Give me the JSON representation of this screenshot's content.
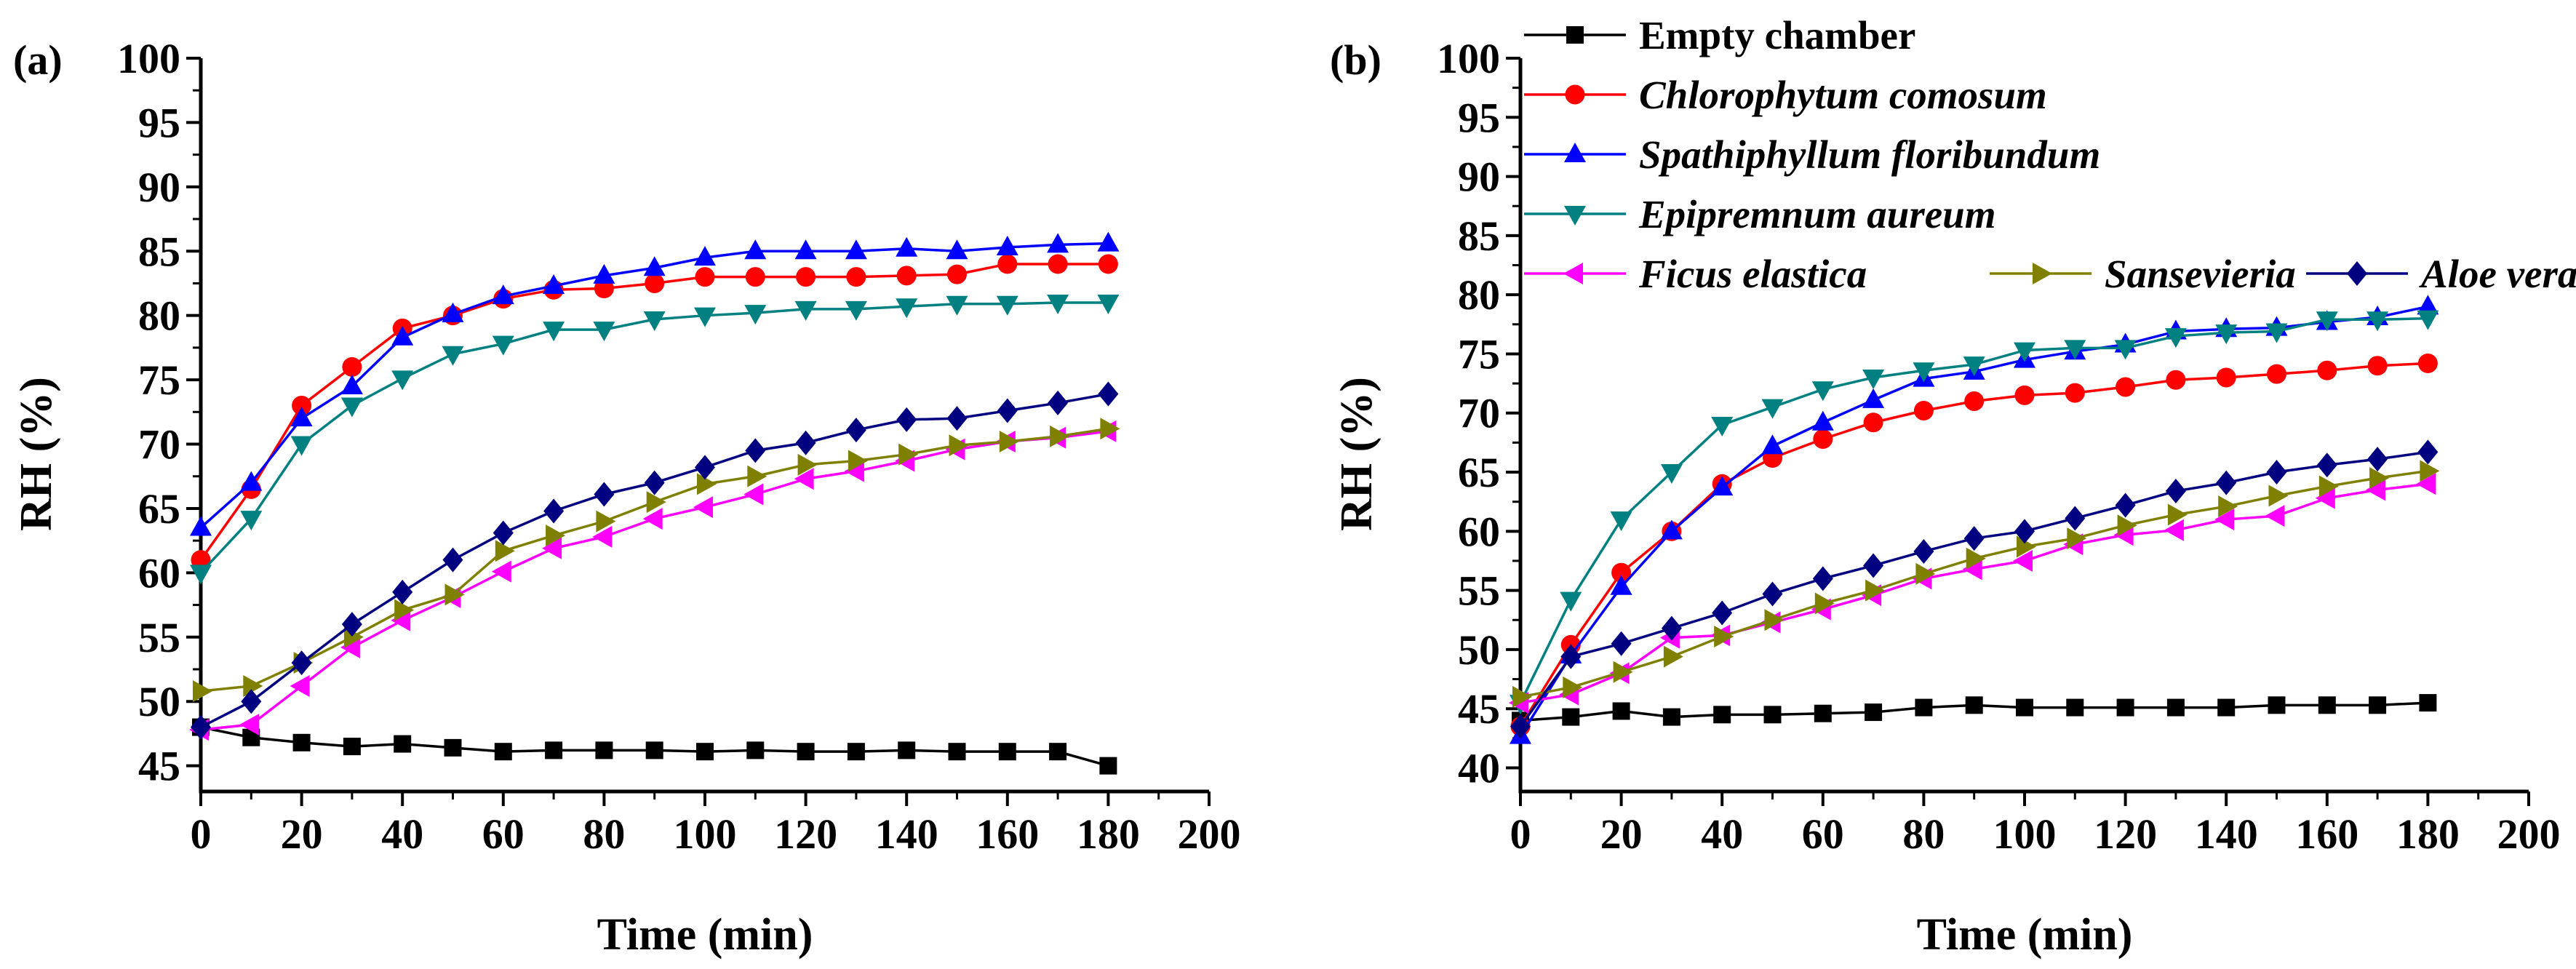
{
  "chart_data": [
    {
      "panel_label": "(a)",
      "type": "line",
      "xlabel": "Time (min)",
      "ylabel": "RH (%)",
      "xlim": [
        0,
        200
      ],
      "ylim": [
        43,
        100
      ],
      "x_ticks": [
        "0",
        "20",
        "40",
        "60",
        "80",
        "100",
        "120",
        "140",
        "160",
        "180",
        "200"
      ],
      "y_ticks": [
        "45",
        "50",
        "55",
        "60",
        "65",
        "70",
        "75",
        "80",
        "85",
        "90",
        "95",
        "100"
      ],
      "x": [
        0,
        10,
        20,
        30,
        40,
        50,
        60,
        70,
        80,
        90,
        100,
        110,
        120,
        130,
        140,
        150,
        160,
        170,
        180
      ],
      "series": [
        {
          "name": "Empty chamber",
          "color": "#000000",
          "marker": "square",
          "values": [
            48,
            47.2,
            46.8,
            46.5,
            46.7,
            46.4,
            46.1,
            46.2,
            46.2,
            46.2,
            46.1,
            46.2,
            46.1,
            46.1,
            46.2,
            46.1,
            46.1,
            46.1,
            45.0
          ]
        },
        {
          "name": "Chlorophytum comosum",
          "color": "#ff0000",
          "marker": "circle",
          "values": [
            61,
            66.5,
            73,
            76,
            79,
            80,
            81.3,
            82,
            82.1,
            82.5,
            83,
            83,
            83,
            83,
            83.1,
            83.2,
            84,
            84,
            84
          ]
        },
        {
          "name": "Spathiphyllum floribundum",
          "color": "#0000ff",
          "marker": "triangle-up",
          "values": [
            63.5,
            67,
            72,
            74.5,
            78.3,
            80.1,
            81.5,
            82.3,
            83.1,
            83.7,
            84.5,
            85,
            85,
            85,
            85.2,
            85,
            85.3,
            85.5,
            85.6
          ]
        },
        {
          "name": "Epipremnum aureum",
          "color": "#008080",
          "marker": "triangle-down",
          "values": [
            60,
            64.2,
            70,
            73,
            75.1,
            77,
            77.8,
            78.9,
            78.9,
            79.7,
            80,
            80.2,
            80.5,
            80.5,
            80.7,
            80.9,
            80.9,
            81,
            81
          ]
        },
        {
          "name": "Ficus elastica",
          "color": "#ff00ff",
          "marker": "triangle-left",
          "values": [
            47.8,
            48.2,
            51.2,
            54.2,
            56.3,
            58.1,
            60.1,
            61.9,
            62.8,
            64.2,
            65.1,
            66.1,
            67.3,
            67.9,
            68.7,
            69.6,
            70.2,
            70.5,
            71
          ]
        },
        {
          "name": "Sansevieria",
          "color": "#808000",
          "marker": "triangle-right",
          "values": [
            50.8,
            51.2,
            53,
            55,
            57.1,
            58.3,
            61.7,
            62.9,
            64,
            65.5,
            66.9,
            67.5,
            68.4,
            68.7,
            69.2,
            69.9,
            70.2,
            70.6,
            71.2
          ]
        },
        {
          "name": "Aloe vera",
          "color": "#000080",
          "marker": "diamond",
          "values": [
            48,
            50,
            53,
            56,
            58.5,
            61,
            63.1,
            64.8,
            66.1,
            67,
            68.2,
            69.5,
            70.1,
            71.1,
            71.9,
            72,
            72.6,
            73.2,
            73.9
          ]
        }
      ]
    },
    {
      "panel_label": "(b)",
      "type": "line",
      "xlabel": "Time (min)",
      "ylabel": "RH (%)",
      "xlim": [
        0,
        200
      ],
      "ylim": [
        38,
        100
      ],
      "x_ticks": [
        "0",
        "20",
        "40",
        "60",
        "80",
        "100",
        "120",
        "140",
        "160",
        "180",
        "200"
      ],
      "y_ticks": [
        "40",
        "45",
        "50",
        "55",
        "60",
        "65",
        "70",
        "75",
        "80",
        "85",
        "90",
        "95",
        "100"
      ],
      "x": [
        0,
        10,
        20,
        30,
        40,
        50,
        60,
        70,
        80,
        90,
        100,
        110,
        120,
        130,
        140,
        150,
        160,
        170,
        180
      ],
      "legend": {
        "position": "top-left",
        "rows": [
          [
            "Empty chamber"
          ],
          [
            "Chlorophytum comosum"
          ],
          [
            "Spathiphyllum floribundum"
          ],
          [
            "Epipremnum aureum"
          ],
          [
            "Ficus elastica",
            "Sansevieria",
            "Aloe vera"
          ]
        ]
      },
      "series": [
        {
          "name": "Empty chamber",
          "color": "#000000",
          "marker": "square",
          "italic": false,
          "values": [
            44,
            44.3,
            44.8,
            44.3,
            44.5,
            44.5,
            44.6,
            44.7,
            45.1,
            45.3,
            45.1,
            45.1,
            45.1,
            45.1,
            45.1,
            45.3,
            45.3,
            45.3,
            45.5
          ]
        },
        {
          "name": "Chlorophytum comosum",
          "color": "#ff0000",
          "marker": "circle",
          "italic": true,
          "values": [
            43.5,
            50.4,
            56.5,
            60,
            64,
            66.2,
            67.8,
            69.2,
            70.2,
            71,
            71.5,
            71.7,
            72.2,
            72.8,
            73,
            73.3,
            73.6,
            74,
            74.2
          ]
        },
        {
          "name": "Spathiphyllum floribundum",
          "color": "#0000ff",
          "marker": "triangle-up",
          "italic": true,
          "values": [
            42.7,
            49.5,
            55.3,
            60,
            63.7,
            67.2,
            69.2,
            71.1,
            72.9,
            73.5,
            74.5,
            75.2,
            75.8,
            76.9,
            77.1,
            77.2,
            77.7,
            78.1,
            79
          ]
        },
        {
          "name": "Epipremnum aureum",
          "color": "#008080",
          "marker": "triangle-down",
          "italic": true,
          "values": [
            45.5,
            54.2,
            61,
            65,
            69,
            70.5,
            72,
            73,
            73.6,
            74.1,
            75.3,
            75.5,
            75.5,
            76.5,
            76.8,
            76.9,
            77.9,
            77.9,
            78
          ]
        },
        {
          "name": "Ficus elastica",
          "color": "#ff00ff",
          "marker": "triangle-left",
          "italic": true,
          "values": [
            45.5,
            46.2,
            48,
            51,
            51.2,
            52.3,
            53.4,
            54.6,
            56,
            56.8,
            57.5,
            58.9,
            59.7,
            60.1,
            61,
            61.3,
            62.8,
            63.5,
            64
          ]
        },
        {
          "name": "Sansevieria",
          "color": "#808000",
          "marker": "triangle-right",
          "italic": true,
          "values": [
            46,
            46.8,
            48.1,
            49.4,
            51.1,
            52.5,
            53.9,
            55,
            56.4,
            57.7,
            58.7,
            59.4,
            60.5,
            61.4,
            62.1,
            63,
            63.8,
            64.5,
            65.1
          ]
        },
        {
          "name": "Aloe vera",
          "color": "#000080",
          "marker": "diamond",
          "italic": true,
          "values": [
            43.5,
            49.4,
            50.5,
            51.8,
            53.1,
            54.7,
            56,
            57.1,
            58.3,
            59.4,
            60,
            61.1,
            62.2,
            63.4,
            64.1,
            65,
            65.6,
            66.1,
            66.7
          ]
        }
      ]
    }
  ]
}
